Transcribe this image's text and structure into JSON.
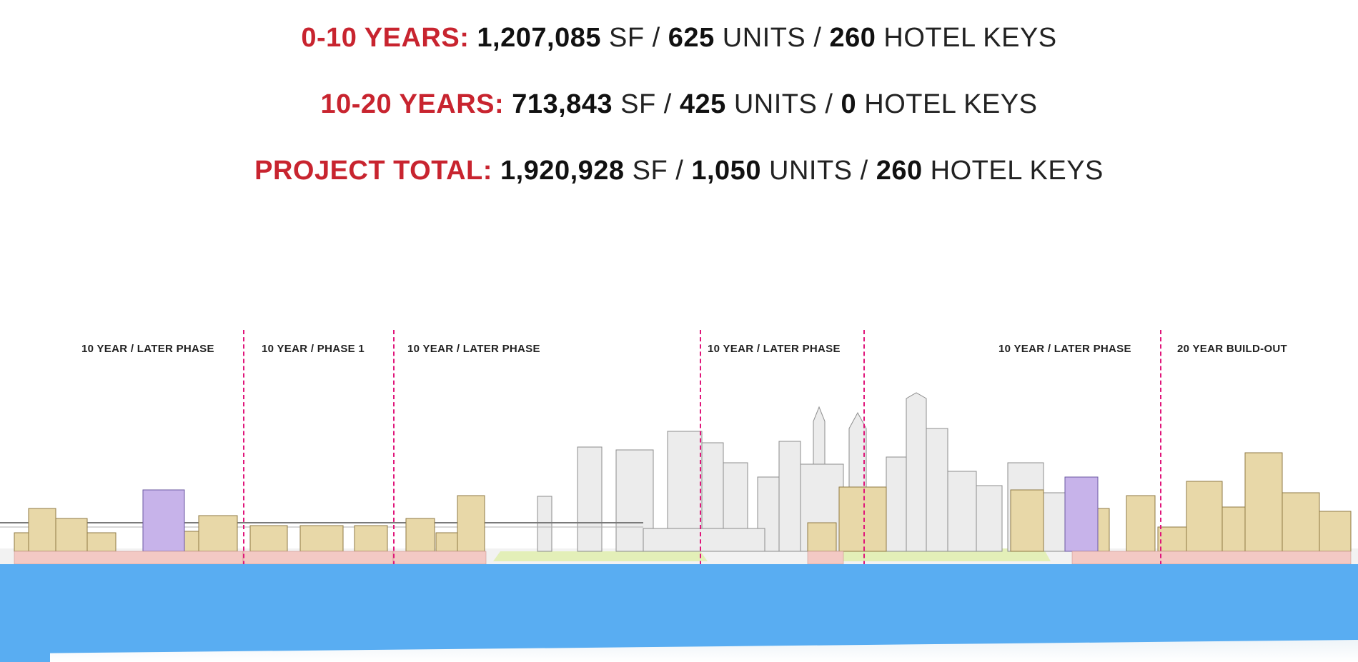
{
  "headlines": [
    {
      "label": "0-10 YEARS:",
      "sf": "1,207,085",
      "sf_unit": "SF",
      "units": "625",
      "units_unit": "UNITS",
      "keys": "260",
      "keys_unit": "HOTEL KEYS",
      "sep": "/"
    },
    {
      "label": "10-20 YEARS:",
      "sf": "713,843",
      "sf_unit": "SF",
      "units": "425",
      "units_unit": "UNITS",
      "keys": "0",
      "keys_unit": "HOTEL KEYS",
      "sep": "/"
    },
    {
      "label": "PROJECT TOTAL:",
      "sf": "1,920,928",
      "sf_unit": "SF",
      "units": "1,050",
      "units_unit": "UNITS",
      "keys": "260",
      "keys_unit": "HOTEL KEYS",
      "sep": "/"
    }
  ],
  "phases": [
    "10 YEAR / LATER PHASE",
    "10 YEAR / PHASE 1",
    "10 YEAR / LATER PHASE",
    "10 YEAR / LATER PHASE",
    "10 YEAR / LATER PHASE",
    "20 YEAR BUILD-OUT"
  ],
  "colors": {
    "accent_red": "#c8242f",
    "divider_magenta": "#e0157a",
    "water_blue": "#59adf2",
    "proposed_tan": "#e8d8a8",
    "proposed_purple": "#c7b3ea",
    "existing_gray": "#ececec",
    "park_green": "#e3efb8",
    "podium_pink": "#f3c9c4"
  }
}
